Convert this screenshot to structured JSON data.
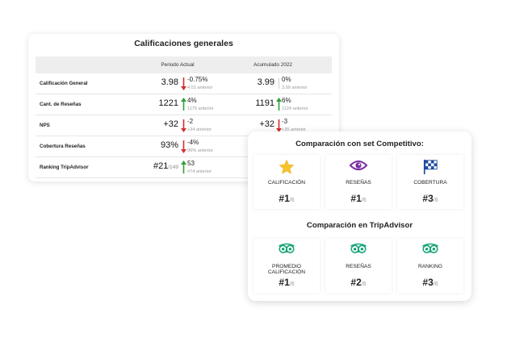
{
  "general": {
    "title": "Calificaciones generales",
    "headers": [
      "Periodo Actual",
      "Acumulado 2022"
    ],
    "rows": [
      {
        "label": "Calificación General",
        "current": {
          "value": "3.98",
          "total": "",
          "change": "-0.75%",
          "prev": "4.01 anterior",
          "dir": "down"
        },
        "acc": {
          "value": "3.99",
          "total": "",
          "change": "0%",
          "prev": "3.99 anterior",
          "dir": "none"
        }
      },
      {
        "label": "Cant. de Reseñas",
        "current": {
          "value": "1221",
          "total": "",
          "change": "4%",
          "prev": "1175 anterior",
          "dir": "up"
        },
        "acc": {
          "value": "1191",
          "total": "",
          "change": "6%",
          "prev": "1124 anterior",
          "dir": "up"
        }
      },
      {
        "label": "NPS",
        "current": {
          "value": "+32",
          "total": "",
          "change": "-2",
          "prev": "+34 anterior",
          "dir": "down"
        },
        "acc": {
          "value": "+32",
          "total": "",
          "change": "-3",
          "prev": "+35 anterior",
          "dir": "down"
        }
      },
      {
        "label": "Cobertura Reseñas",
        "current": {
          "value": "93%",
          "total": "",
          "change": "-4%",
          "prev": "96% anterior",
          "dir": "down"
        }
      },
      {
        "label": "Ranking TripAdvisor",
        "current": {
          "value": "#21",
          "total": "/149",
          "change": "53",
          "prev": "#74 anterior",
          "dir": "up"
        }
      }
    ]
  },
  "competitive": {
    "title": "Comparación con set Competitivo:",
    "tiles": [
      {
        "label": "CALIFICACIÓN",
        "rank": "#1",
        "total": "/6",
        "icon": "star-icon"
      },
      {
        "label": "RESEÑAS",
        "rank": "#1",
        "total": "/6",
        "icon": "eye-icon"
      },
      {
        "label": "COBERTURA",
        "rank": "#3",
        "total": "/6",
        "icon": "checkered-flag-icon"
      }
    ]
  },
  "tripadvisor": {
    "title": "Comparación en TripAdvisor",
    "tiles": [
      {
        "label": "PROMEDIO CALIFICACIÓN",
        "rank": "#1",
        "total": "/6",
        "icon": "tripadvisor-owl-icon"
      },
      {
        "label": "RESEÑAS",
        "rank": "#2",
        "total": "/6",
        "icon": "tripadvisor-owl-icon"
      },
      {
        "label": "RANKING",
        "rank": "#3",
        "total": "/6",
        "icon": "tripadvisor-owl-icon"
      }
    ]
  },
  "colors": {
    "up": "#2e9e3a",
    "down": "#d32f2f",
    "owl": "#1aa37a",
    "star": "#f6c32b",
    "eye": "#7b2fa3",
    "flag": "#1f4b9e"
  }
}
